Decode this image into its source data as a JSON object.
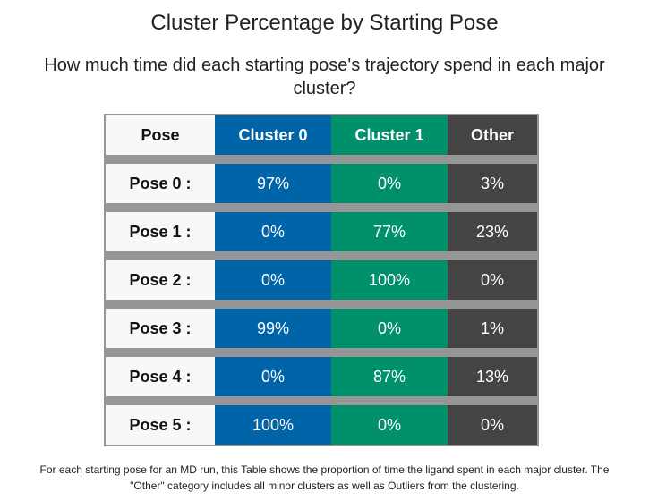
{
  "title": "Cluster Percentage by Starting Pose",
  "subtitle_line1": "How much time did each starting pose's trajectory spend in each major",
  "subtitle_line2": "cluster?",
  "colors": {
    "cluster0": "#0064a8",
    "cluster1": "#00916a",
    "other": "#444444",
    "pose_bg": "#f8f8f8",
    "separator": "#969696"
  },
  "table": {
    "headers": [
      "Pose",
      "Cluster 0",
      "Cluster 1",
      "Other"
    ],
    "rows": [
      {
        "pose": "Pose 0 :",
        "cluster0": "97%",
        "cluster1": "0%",
        "other": "3%"
      },
      {
        "pose": "Pose 1 :",
        "cluster0": "0%",
        "cluster1": "77%",
        "other": "23%"
      },
      {
        "pose": "Pose 2 :",
        "cluster0": "0%",
        "cluster1": "100%",
        "other": "0%"
      },
      {
        "pose": "Pose 3 :",
        "cluster0": "99%",
        "cluster1": "0%",
        "other": "1%"
      },
      {
        "pose": "Pose 4 :",
        "cluster0": "0%",
        "cluster1": "87%",
        "other": "13%"
      },
      {
        "pose": "Pose 5 :",
        "cluster0": "100%",
        "cluster1": "0%",
        "other": "0%"
      }
    ]
  },
  "footer_line1": "For each starting pose for an MD run, this Table shows the proportion of time the ligand spent in each major cluster. The",
  "footer_line2": "\"Other\" category includes all minor clusters as well as Outliers from the clustering."
}
